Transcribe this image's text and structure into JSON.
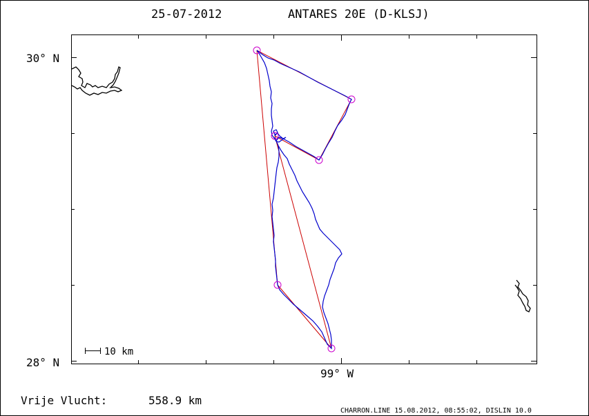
{
  "header": {
    "date": "25-07-2012",
    "aircraft": "ANTARES 20E (D-KLSJ)"
  },
  "axes": {
    "lat_top_label": "30° N",
    "lat_bottom_label": "28° N",
    "lon_label": "99° W"
  },
  "scale_bar": {
    "label": "10 km"
  },
  "footer": {
    "distance_label": "Vrije Vlucht:",
    "distance_value": "558.9 km",
    "credit": "CHARRON.LINE 15.08.2012, 08:55:02, DISLIN 10.0"
  },
  "colors": {
    "track": "#0000cc",
    "task": "#cc0000",
    "turnpoint": "#cc00cc",
    "frame": "#000000"
  }
}
